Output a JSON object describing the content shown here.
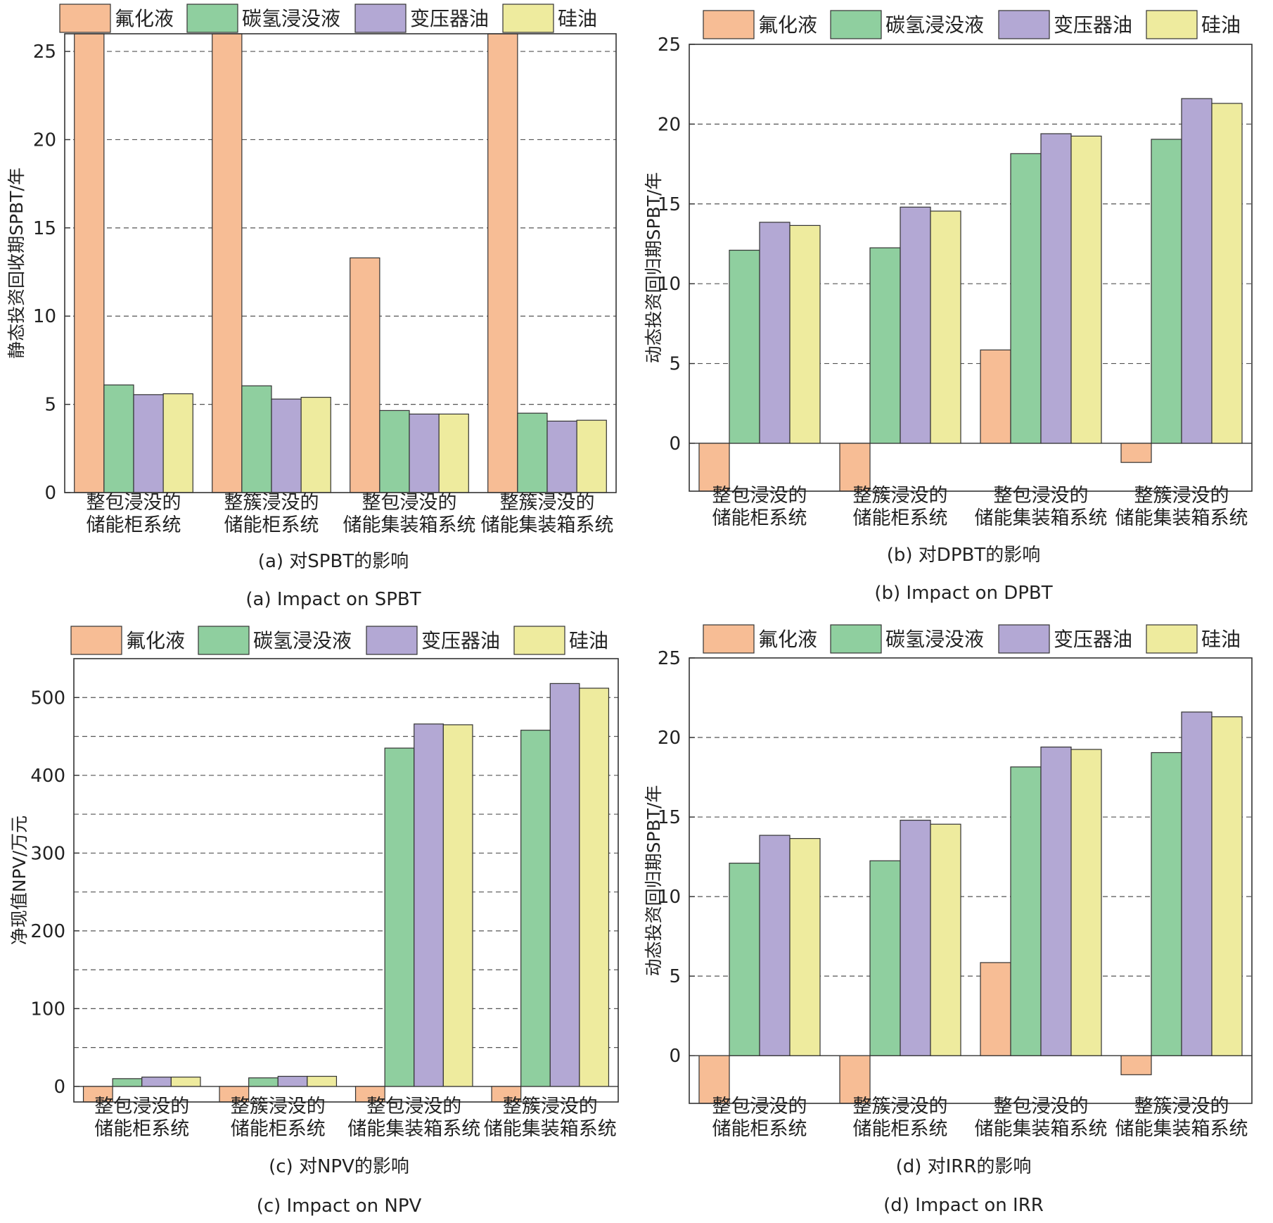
{
  "figure": {
    "categories": [
      [
        "整包浸没的",
        "储能柜系统"
      ],
      [
        "整簇浸没的",
        "储能柜系统"
      ],
      [
        "整包浸没的",
        "储能集装箱系统"
      ],
      [
        "整簇浸没的",
        "储能集装箱系统"
      ]
    ],
    "legend": [
      "氟化液",
      "碳氢浸没液",
      "变压器油",
      "硅油"
    ],
    "colors": {
      "氟化液": "#f7bd95",
      "碳氢浸没液": "#8fcf9f",
      "变压器油": "#b3a8d4",
      "硅油": "#eeeb9e"
    }
  },
  "chart_data": [
    {
      "type": "bar",
      "panel": "a",
      "caption_cn": "(a) 对SPBT的影响",
      "caption_en": "(a) Impact on SPBT",
      "ylabel": "静态投资回收期SPBT/年",
      "ylim": [
        0,
        26
      ],
      "yticks": [
        0,
        5,
        10,
        15,
        20,
        25
      ],
      "grid": [
        5,
        10,
        15,
        20,
        25
      ],
      "series": [
        {
          "name": "氟化液",
          "values": [
            26,
            26,
            13.3,
            26
          ]
        },
        {
          "name": "碳氢浸没液",
          "values": [
            6.1,
            6.05,
            4.65,
            4.5
          ]
        },
        {
          "name": "变压器油",
          "values": [
            5.55,
            5.3,
            4.45,
            4.05
          ]
        },
        {
          "name": "硅油",
          "values": [
            5.6,
            5.4,
            4.45,
            4.1
          ]
        }
      ]
    },
    {
      "type": "bar",
      "panel": "b",
      "caption_cn": "(b) 对DPBT的影响",
      "caption_en": "(b) Impact on DPBT",
      "ylabel": "动态投资回归期SPBT/年",
      "ylim": [
        -3,
        25
      ],
      "yticks": [
        0,
        5,
        10,
        15,
        20,
        25
      ],
      "grid": [
        5,
        10,
        15,
        20
      ],
      "series": [
        {
          "name": "氟化液",
          "values": [
            -3,
            -3,
            5.85,
            -1.2
          ]
        },
        {
          "name": "碳氢浸没液",
          "values": [
            12.1,
            12.25,
            18.15,
            19.05
          ]
        },
        {
          "name": "变压器油",
          "values": [
            13.85,
            14.8,
            19.4,
            21.6
          ]
        },
        {
          "name": "硅油",
          "values": [
            13.65,
            14.55,
            19.25,
            21.3
          ]
        }
      ]
    },
    {
      "type": "bar",
      "panel": "c",
      "caption_cn": "(c) 对NPV的影响",
      "caption_en": "(c) Impact on NPV",
      "ylabel": "净现值NPV/万元",
      "ylim": [
        -20,
        550
      ],
      "yticks": [
        0,
        100,
        200,
        300,
        400,
        500
      ],
      "grid": [
        50,
        100,
        150,
        200,
        250,
        300,
        350,
        400,
        450,
        500
      ],
      "series": [
        {
          "name": "氟化液",
          "values": [
            -20,
            -20,
            -20,
            -20
          ]
        },
        {
          "name": "碳氢浸没液",
          "values": [
            10,
            11,
            435,
            458
          ]
        },
        {
          "name": "变压器油",
          "values": [
            12,
            13,
            466,
            518
          ]
        },
        {
          "name": "硅油",
          "values": [
            12,
            13,
            465,
            512
          ]
        }
      ]
    },
    {
      "type": "bar",
      "panel": "d",
      "caption_cn": "(d) 对IRR的影响",
      "caption_en": "(d) Impact on IRR",
      "ylabel": "动态投资回归期SPBT/年",
      "ylim": [
        -3,
        25
      ],
      "yticks": [
        0,
        5,
        10,
        15,
        20,
        25
      ],
      "grid": [
        5,
        10,
        15,
        20
      ],
      "series": [
        {
          "name": "氟化液",
          "values": [
            -3,
            -3,
            5.85,
            -1.2
          ]
        },
        {
          "name": "碳氢浸没液",
          "values": [
            12.1,
            12.25,
            18.15,
            19.05
          ]
        },
        {
          "name": "变压器油",
          "values": [
            13.85,
            14.8,
            19.4,
            21.6
          ]
        },
        {
          "name": "硅油",
          "values": [
            13.65,
            14.55,
            19.25,
            21.3
          ]
        }
      ]
    }
  ]
}
